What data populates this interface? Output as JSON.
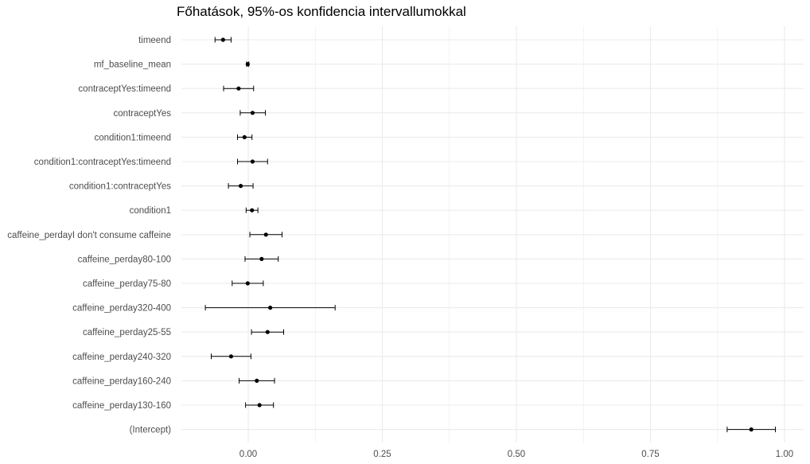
{
  "chart_data": {
    "type": "scatter",
    "title": "Főhatások, 95%-os konfidencia intervallumokkal",
    "xlabel": "",
    "ylabel": "",
    "xlim": [
      -0.13,
      1.03
    ],
    "xticks": [
      "0.00",
      "0.25",
      "0.50",
      "0.75",
      "1.00"
    ],
    "grid": true,
    "terms": [
      {
        "label": "timeend",
        "estimate": -0.047,
        "lower": -0.062,
        "upper": -0.032
      },
      {
        "label": "mf_baseline_mean",
        "estimate": -0.001,
        "lower": -0.003,
        "upper": 0.001
      },
      {
        "label": "contraceptYes:timeend",
        "estimate": -0.018,
        "lower": -0.046,
        "upper": 0.01
      },
      {
        "label": "contraceptYes",
        "estimate": 0.008,
        "lower": -0.015,
        "upper": 0.032
      },
      {
        "label": "condition1:timeend",
        "estimate": -0.007,
        "lower": -0.02,
        "upper": 0.007
      },
      {
        "label": "condition1:contraceptYes:timeend",
        "estimate": 0.008,
        "lower": -0.02,
        "upper": 0.036
      },
      {
        "label": "condition1:contraceptYes",
        "estimate": -0.014,
        "lower": -0.037,
        "upper": 0.009
      },
      {
        "label": "condition1",
        "estimate": 0.007,
        "lower": -0.004,
        "upper": 0.018
      },
      {
        "label": "caffeine_perdayI don't consume caffeine",
        "estimate": 0.033,
        "lower": 0.003,
        "upper": 0.063
      },
      {
        "label": "caffeine_perday80-100",
        "estimate": 0.025,
        "lower": -0.006,
        "upper": 0.056
      },
      {
        "label": "caffeine_perday75-80",
        "estimate": -0.001,
        "lower": -0.03,
        "upper": 0.028
      },
      {
        "label": "caffeine_perday320-400",
        "estimate": 0.041,
        "lower": -0.08,
        "upper": 0.162
      },
      {
        "label": "caffeine_perday25-55",
        "estimate": 0.036,
        "lower": 0.006,
        "upper": 0.066
      },
      {
        "label": "caffeine_perday240-320",
        "estimate": -0.032,
        "lower": -0.069,
        "upper": 0.005
      },
      {
        "label": "caffeine_perday160-240",
        "estimate": 0.016,
        "lower": -0.017,
        "upper": 0.049
      },
      {
        "label": "caffeine_perday130-160",
        "estimate": 0.021,
        "lower": -0.005,
        "upper": 0.047
      },
      {
        "label": "(Intercept)",
        "estimate": 0.938,
        "lower": 0.893,
        "upper": 0.983
      }
    ],
    "colors": {
      "point": "#000000",
      "grid": "#ebebeb",
      "tick_text": "#4d4d4d"
    }
  }
}
